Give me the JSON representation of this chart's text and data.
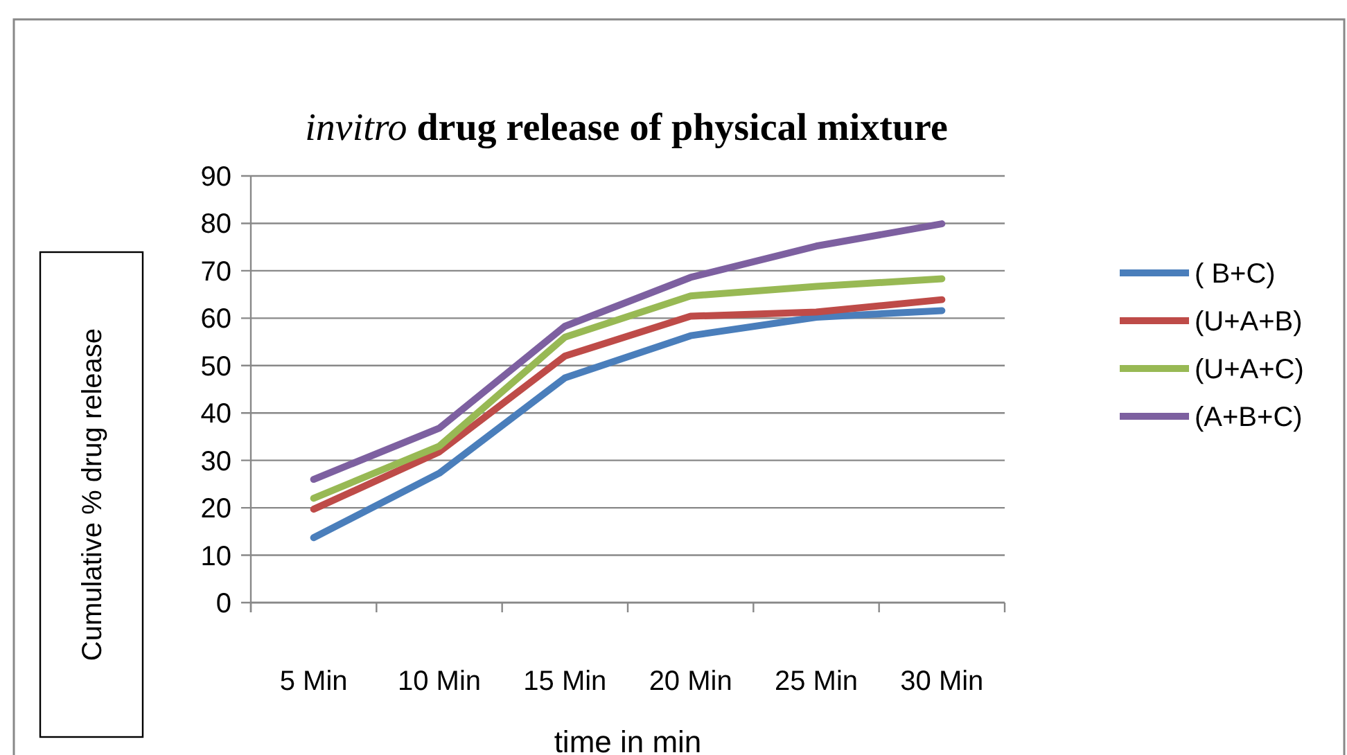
{
  "chart_data": {
    "type": "line",
    "title": "invitro drug release of physical mixture",
    "xlabel": "time in min",
    "ylabel": "Cumulative % drug release",
    "categories": [
      "5 Min",
      "10 Min",
      "15 Min",
      "20 Min",
      "25 Min",
      "30 Min"
    ],
    "series": [
      {
        "name": "( B+C)",
        "color": "#4a7ebb",
        "values": [
          13.7,
          27.3,
          47.4,
          56.3,
          60.2,
          61.6
        ]
      },
      {
        "name": "(U+A+B)",
        "color": "#be4b48",
        "values": [
          19.7,
          31.8,
          52,
          60.4,
          61.3,
          63.9
        ]
      },
      {
        "name": "(U+A+C)",
        "color": "#98b954",
        "values": [
          22,
          33,
          56,
          64.7,
          66.7,
          68.3
        ]
      },
      {
        "name": "(A+B+C)",
        "color": "#7d60a0",
        "values": [
          26,
          36.8,
          58.3,
          68.6,
          75.2,
          79.9
        ]
      }
    ],
    "ylim": [
      0,
      90
    ],
    "yticks": [
      0,
      10,
      20,
      30,
      40,
      50,
      60,
      70,
      80,
      90
    ],
    "grid": "y",
    "legend": "right",
    "marker": "none",
    "line_style": "solid"
  }
}
